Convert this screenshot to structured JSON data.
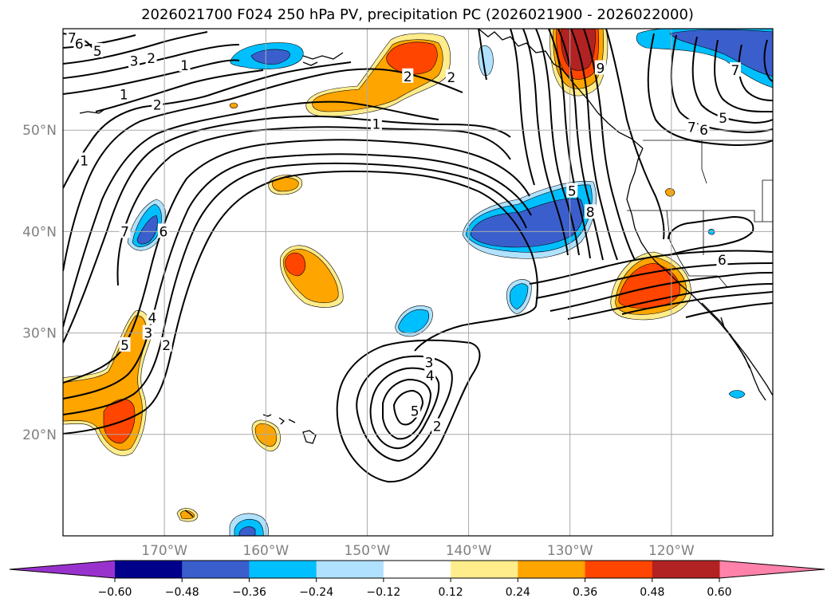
{
  "title": "2026021700 F024 250 hPa PV, precipitation PC (2026021900 - 2026022000)",
  "map": {
    "projection": "PlateCarree",
    "lon_range": [
      -180,
      -110
    ],
    "lat_range": [
      10,
      60
    ],
    "lat_ticks": [
      {
        "lat": 50,
        "label": "50°N"
      },
      {
        "lat": 40,
        "label": "40°N"
      },
      {
        "lat": 30,
        "label": "30°N"
      },
      {
        "lat": 20,
        "label": "20°N"
      }
    ],
    "lon_ticks": [
      {
        "lon": -170,
        "label": "170°W"
      },
      {
        "lon": -160,
        "label": "160°W"
      },
      {
        "lon": -150,
        "label": "150°W"
      },
      {
        "lon": -140,
        "label": "140°W"
      },
      {
        "lon": -130,
        "label": "130°W"
      },
      {
        "lon": -120,
        "label": "120°W"
      }
    ],
    "gridlines": true
  },
  "colorbar": {
    "levels": [
      "−0.60",
      "−0.48",
      "−0.36",
      "−0.24",
      "−0.12",
      "0.12",
      "0.24",
      "0.36",
      "0.48",
      "0.60"
    ],
    "colors": [
      "#9932cc",
      "#00008b",
      "#3a5fcd",
      "#00bfff",
      "#b0e2ff",
      "#ffffff",
      "#ffec8b",
      "#ffa500",
      "#ff4500",
      "#b22222",
      "#ff82ab"
    ],
    "extend": "both"
  },
  "contour_labels": [
    {
      "text": "7",
      "lon": -179.1,
      "lat": 59.1
    },
    {
      "text": "6",
      "lon": -178.4,
      "lat": 58.5
    },
    {
      "text": "5",
      "lon": -176.6,
      "lat": 57.8
    },
    {
      "text": "3",
      "lon": -173.0,
      "lat": 56.8
    },
    {
      "text": "2",
      "lon": -171.3,
      "lat": 57.1
    },
    {
      "text": "1",
      "lon": -168.0,
      "lat": 56.4
    },
    {
      "text": "1",
      "lon": -174.0,
      "lat": 53.5
    },
    {
      "text": "2",
      "lon": -170.7,
      "lat": 52.5
    },
    {
      "text": "1",
      "lon": -177.9,
      "lat": 47.0
    },
    {
      "text": "7",
      "lon": -173.9,
      "lat": 40.0
    },
    {
      "text": "6",
      "lon": -170.1,
      "lat": 40.0
    },
    {
      "text": "5",
      "lon": -173.9,
      "lat": 28.8
    },
    {
      "text": "4",
      "lon": -171.2,
      "lat": 31.5
    },
    {
      "text": "3",
      "lon": -171.6,
      "lat": 30.0
    },
    {
      "text": "2",
      "lon": -169.8,
      "lat": 28.8
    },
    {
      "text": "1",
      "lon": -149.1,
      "lat": 50.6
    },
    {
      "text": "2",
      "lon": -141.7,
      "lat": 55.2
    },
    {
      "text": "2",
      "lon": -146.0,
      "lat": 55.3
    },
    {
      "text": "5",
      "lon": -129.8,
      "lat": 44.0
    },
    {
      "text": "9",
      "lon": -127.0,
      "lat": 56.1
    },
    {
      "text": "8",
      "lon": -128.0,
      "lat": 41.9
    },
    {
      "text": "7",
      "lon": -118.0,
      "lat": 50.3
    },
    {
      "text": "6",
      "lon": -116.8,
      "lat": 50.0
    },
    {
      "text": "5",
      "lon": -114.9,
      "lat": 51.2
    },
    {
      "text": "7",
      "lon": -113.7,
      "lat": 55.9
    },
    {
      "text": "6",
      "lon": -115.0,
      "lat": 37.2
    },
    {
      "text": "3",
      "lon": -143.9,
      "lat": 27.1
    },
    {
      "text": "4",
      "lon": -143.8,
      "lat": 25.8
    },
    {
      "text": "5",
      "lon": -145.3,
      "lat": 22.3
    },
    {
      "text": "2",
      "lon": -143.1,
      "lat": 20.8
    }
  ]
}
